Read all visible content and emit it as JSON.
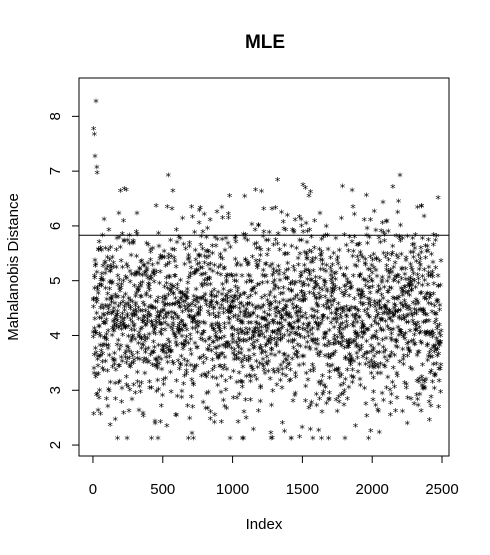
{
  "chart_data": {
    "type": "scatter",
    "title": "MLE",
    "xlabel": "Index",
    "ylabel": "Mahalanobis Distance",
    "xlim": [
      -100,
      2550
    ],
    "ylim": [
      1.8,
      8.7
    ],
    "xticks": [
      0,
      500,
      1000,
      1500,
      2000,
      2500
    ],
    "yticks": [
      2,
      3,
      4,
      5,
      6,
      7,
      8
    ],
    "marker": "*",
    "grid": false,
    "n_points": 2500,
    "threshold_line": 5.83,
    "outliers_above": [
      {
        "x": 22,
        "y": 8.25
      },
      {
        "x": 5,
        "y": 7.75
      },
      {
        "x": 10,
        "y": 7.65
      },
      {
        "x": 15,
        "y": 7.25
      },
      {
        "x": 28,
        "y": 7.05
      },
      {
        "x": 30,
        "y": 6.95
      }
    ],
    "bulk_range": [
      2.1,
      6.9
    ],
    "bulk_center": 4.3
  }
}
